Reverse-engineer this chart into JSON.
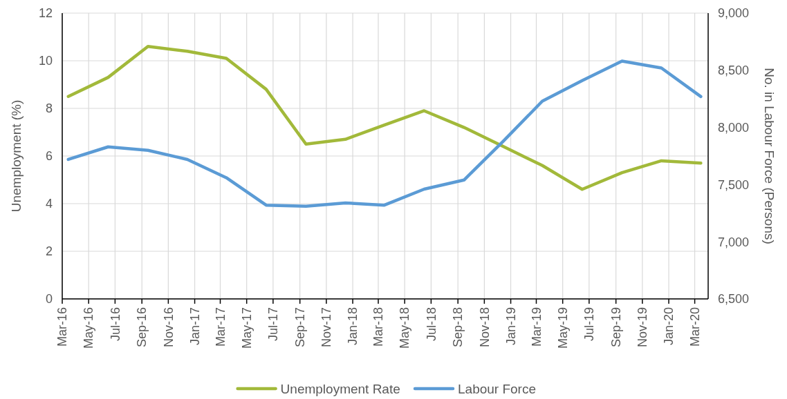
{
  "chart_data": {
    "type": "line",
    "ylabel": "Unemployment (%)",
    "y2label": "No. in Labour Force (Persons)",
    "x": [
      "2016-03-15",
      "2016-06-15",
      "2016-09-15",
      "2016-12-15",
      "2017-03-15",
      "2017-06-15",
      "2017-09-15",
      "2017-12-15",
      "2018-03-15",
      "2018-06-15",
      "2018-09-15",
      "2018-12-15",
      "2019-03-15",
      "2019-06-15",
      "2019-09-15",
      "2019-12-15",
      "2020-03-15"
    ],
    "series": [
      {
        "name": "Unemployment Rate",
        "color": "#a2b93a",
        "values": [
          8.5,
          9.3,
          10.6,
          10.4,
          10.1,
          8.8,
          6.5,
          6.7,
          7.3,
          7.9,
          7.2,
          6.4,
          5.6,
          4.6,
          5.3,
          5.8,
          5.7
        ]
      },
      {
        "name": "Labour Force",
        "color": "#5b9bd5",
        "axis": "y2",
        "values": [
          7720,
          7830,
          7800,
          7720,
          7560,
          7320,
          7310,
          7340,
          7320,
          7460,
          7540,
          7880,
          8230,
          8410,
          8580,
          8520,
          8270
        ]
      }
    ],
    "xlim": [
      "2016-03",
      "2020-04"
    ],
    "xticks": [
      {
        "value": "2016-03",
        "label": "Mar-16"
      },
      {
        "value": "2016-05",
        "label": "May-16"
      },
      {
        "value": "2016-07",
        "label": "Jul-16"
      },
      {
        "value": "2016-09",
        "label": "Sep-16"
      },
      {
        "value": "2016-11",
        "label": "Nov-16"
      },
      {
        "value": "2017-01",
        "label": "Jan-17"
      },
      {
        "value": "2017-03",
        "label": "Mar-17"
      },
      {
        "value": "2017-05",
        "label": "May-17"
      },
      {
        "value": "2017-07",
        "label": "Jul-17"
      },
      {
        "value": "2017-09",
        "label": "Sep-17"
      },
      {
        "value": "2017-11",
        "label": "Nov-17"
      },
      {
        "value": "2018-01",
        "label": "Jan-18"
      },
      {
        "value": "2018-03",
        "label": "Mar-18"
      },
      {
        "value": "2018-05",
        "label": "May-18"
      },
      {
        "value": "2018-07",
        "label": "Jul-18"
      },
      {
        "value": "2018-09",
        "label": "Sep-18"
      },
      {
        "value": "2018-11",
        "label": "Nov-18"
      },
      {
        "value": "2019-01",
        "label": "Jan-19"
      },
      {
        "value": "2019-03",
        "label": "Mar-19"
      },
      {
        "value": "2019-05",
        "label": "May-19"
      },
      {
        "value": "2019-07",
        "label": "Jul-19"
      },
      {
        "value": "2019-09",
        "label": "Sep-19"
      },
      {
        "value": "2019-11",
        "label": "Nov-19"
      },
      {
        "value": "2020-01",
        "label": "Jan-20"
      },
      {
        "value": "2020-03",
        "label": "Mar-20"
      }
    ],
    "ylim": [
      0,
      12
    ],
    "yticks": [
      0,
      2,
      4,
      6,
      8,
      10,
      12
    ],
    "y2lim": [
      6500,
      9000
    ],
    "y2ticks": [
      {
        "value": 6500,
        "label": "6,500"
      },
      {
        "value": 7000,
        "label": "7,000"
      },
      {
        "value": 7500,
        "label": "7,500"
      },
      {
        "value": 8000,
        "label": "8,000"
      },
      {
        "value": 8500,
        "label": "8,500"
      },
      {
        "value": 9000,
        "label": "9,000"
      }
    ],
    "grid": true,
    "legend": "bottom"
  }
}
